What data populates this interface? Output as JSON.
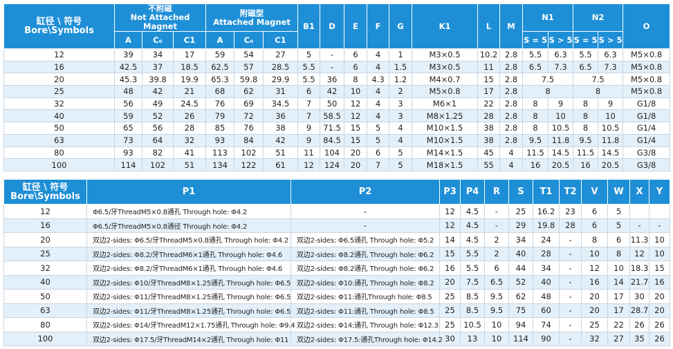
{
  "table1": {
    "header": {
      "bore_cn": "缸径 \\ 符号",
      "bore_en": "Bore\\Symbols",
      "group1_cn": "不附磁",
      "group1_en": "Not Attached Magnet",
      "group2_cn": "附磁型",
      "group2_en": "Attached Magnet",
      "cols_top": [
        "B1",
        "D",
        "E",
        "F",
        "G",
        "K1",
        "L",
        "M"
      ],
      "n1": "N1",
      "n2": "N2",
      "o": "O",
      "sub1": [
        "A",
        "C₀",
        "C1"
      ],
      "sub2": [
        "A",
        "C₀",
        "C1"
      ],
      "n1_sub": [
        "S = 5",
        "S > 5"
      ],
      "n2_sub": [
        "S = 5",
        "S > 5"
      ]
    },
    "rows": [
      [
        12,
        39,
        34,
        17,
        59,
        54,
        27,
        5,
        "-",
        6,
        4,
        1,
        "M3×0.5",
        10.2,
        2.8,
        5.5,
        6.3,
        5.5,
        6.3,
        "M5×0.8"
      ],
      [
        16,
        42.5,
        37,
        18.5,
        62.5,
        57,
        28.5,
        5.5,
        "-",
        6,
        4,
        1.5,
        "M3×0.5",
        11,
        2.8,
        6.5,
        7.3,
        6.5,
        7.3,
        "M5×0.8"
      ],
      [
        20,
        45.3,
        39.8,
        19.9,
        65.3,
        59.8,
        29.9,
        5.5,
        36,
        8,
        4.3,
        1.2,
        "M4×0.7",
        15,
        2.8,
        7.5,
        null,
        7.5,
        null,
        "M5×0.8"
      ],
      [
        25,
        48,
        42,
        21,
        68,
        62,
        31,
        6,
        42,
        10,
        4,
        2,
        "M5×0.8",
        17,
        2.8,
        8,
        null,
        8,
        null,
        "M5×0.8"
      ],
      [
        32,
        56,
        49,
        24.5,
        76,
        69,
        34.5,
        7,
        50,
        12,
        4,
        3,
        "M6×1",
        22,
        2.8,
        8,
        9,
        8,
        9,
        "G1/8"
      ],
      [
        40,
        59,
        52,
        26,
        79,
        72,
        36,
        7,
        58.5,
        12,
        4,
        3,
        "M8×1.25",
        28,
        2.8,
        8,
        10,
        8,
        10,
        "G1/8"
      ],
      [
        50,
        65,
        56,
        28,
        85,
        76,
        38,
        9,
        71.5,
        15,
        5,
        4,
        "M10×1.5",
        38,
        2.8,
        8,
        10.5,
        8,
        10.5,
        "G1/4"
      ],
      [
        63,
        73,
        64,
        32,
        93,
        84,
        42,
        9,
        84.5,
        15,
        5,
        4,
        "M10×1.5",
        38,
        2.8,
        9.5,
        11.8,
        9.5,
        11.8,
        "G1/4"
      ],
      [
        80,
        93,
        82,
        41,
        113,
        102,
        51,
        11,
        104,
        20,
        6,
        5,
        "M14×1.5",
        45,
        4,
        11.5,
        14.5,
        11.5,
        14.5,
        "G3/8"
      ],
      [
        100,
        114,
        102,
        51,
        134,
        122,
        61,
        12,
        124,
        20,
        7,
        5,
        "M18×1.5",
        55,
        4,
        16,
        20.5,
        16,
        20.5,
        "G3/8"
      ]
    ]
  },
  "table2": {
    "header": {
      "bore_cn": "缸径 \\ 符号",
      "bore_en": "Bore\\Symbols",
      "cols": [
        "P1",
        "P2",
        "P3",
        "P4",
        "R",
        "S",
        "T1",
        "T2",
        "V",
        "W",
        "X",
        "Y"
      ]
    },
    "rows": [
      [
        12,
        "Φ6.5/牙ThreadM5×0.8通孔 Through hole: Φ4.2",
        "-",
        12,
        4.5,
        "-",
        25,
        16.2,
        23,
        6,
        5,
        null,
        null
      ],
      [
        16,
        "Φ6.5/牙ThreadM5×0.8通径 Through hole: Φ4.2",
        "-",
        12,
        4.5,
        "-",
        29,
        19.8,
        28,
        6,
        5,
        "-",
        "-"
      ],
      [
        20,
        "双边2-sides: Φ6.5/牙ThreadM5×0.8通孔 Through hole: Φ4.2",
        "双边2-sides: Φ6.5通孔 Through hole: Φ5.2",
        14,
        4.5,
        2,
        34,
        24,
        "-",
        8,
        6,
        11.3,
        10
      ],
      [
        25,
        "双边2-sides: Φ8.2/牙ThreadM6×1通孔 Through hole: Φ4.6",
        "双边2-sides: Φ8.2通孔 Through hole: Φ6.2",
        15,
        5.5,
        2,
        40,
        28,
        "-",
        10,
        8,
        12,
        10
      ],
      [
        32,
        "双边2-sides: Φ8.2/牙ThreadM6×1通孔 Through hole: Φ4.6",
        "双边2-sides: Φ8.2通孔 Through hole: Φ6.2",
        16,
        5.5,
        6,
        44,
        34,
        "-",
        12,
        10,
        18.3,
        15
      ],
      [
        40,
        "双边2-sides: Φ10/牙ThreadM8×1.25通孔 Through hole: Φ6.5",
        "双边2-sides: Φ10:通孔 Through hole: Φ8.2",
        20,
        7.5,
        6.5,
        52,
        40,
        "-",
        16,
        14,
        21.7,
        16
      ],
      [
        50,
        "双边2-sides: Φ11/牙ThreadM8×1.25通孔 Through hole: Φ6.5",
        "双边2-sides: Φ11:通孔Through hole: Φ8.5",
        25,
        8.5,
        9.5,
        62,
        48,
        "-",
        20,
        17,
        30,
        20
      ],
      [
        63,
        "双边2-sides: Φ11/牙ThreadM8×1.25通孔 Through hole: Φ6.5",
        "双边2-sides: Φ11:通孔 Through hole: Φ8.5",
        25,
        8.5,
        9.5,
        75,
        60,
        "-",
        20,
        17,
        28.7,
        20
      ],
      [
        80,
        "双边2-sides: Φ14/牙ThreadM12×1.75通孔 Through hole: Φ9.4",
        "双边2-sides: Φ14:通孔 Through hole: Φ12.3",
        25,
        10.5,
        10,
        94,
        74,
        "-",
        25,
        22,
        26,
        26
      ],
      [
        100,
        "双边2-sides: Φ17.5/牙ThreadM14×2通孔 Through hole: Φ11",
        "双边2-sides: Φ17.5:通孔Through hole: Φ14.2",
        30,
        13,
        10,
        114,
        90,
        "-",
        32,
        27,
        35,
        26
      ]
    ]
  }
}
